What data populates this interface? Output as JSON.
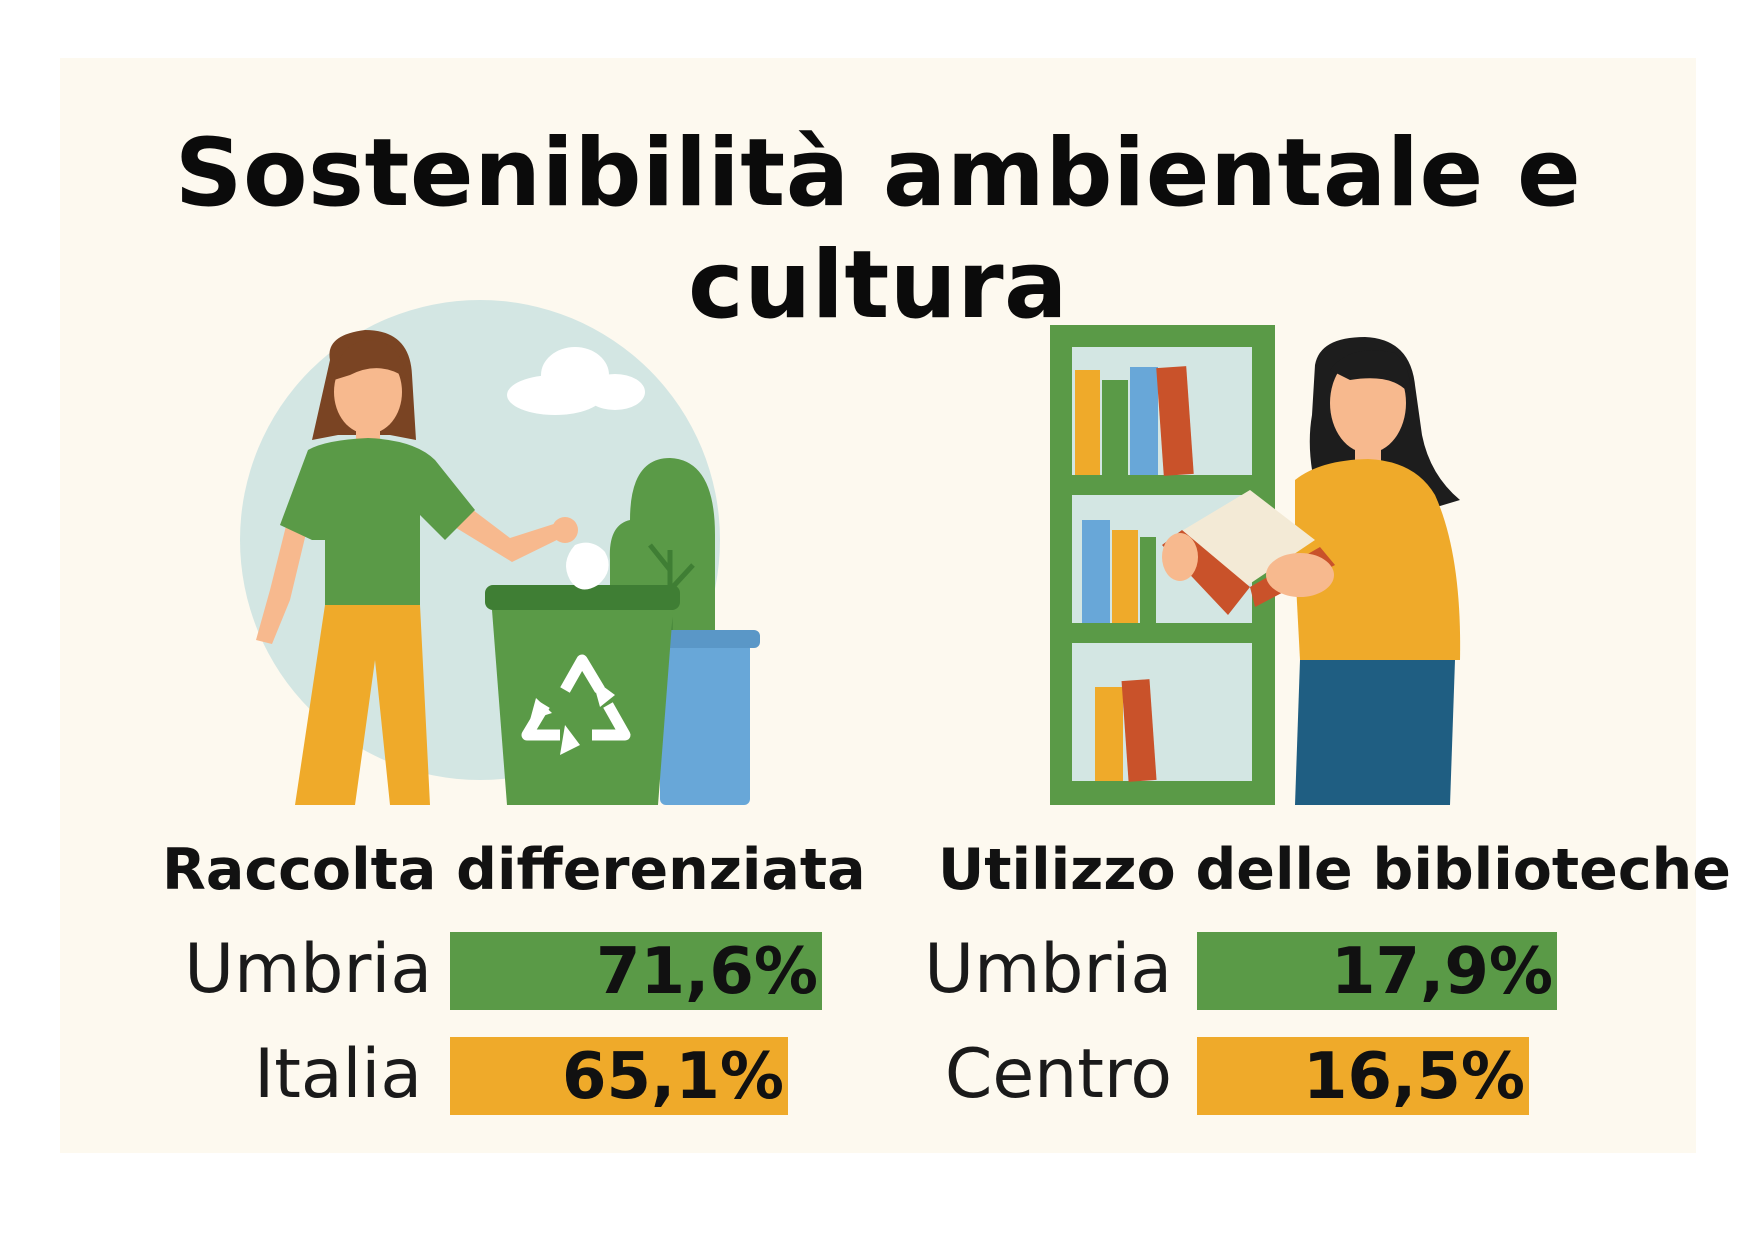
{
  "title": "Sostenibilità ambientale e cultura",
  "colors": {
    "green": "#5a9a47",
    "orange": "#efaa2a",
    "background": "#fdf9ef"
  },
  "illustrations": {
    "left": "person-recycling-illustration",
    "right": "person-reading-library-illustration"
  },
  "chart_data": [
    {
      "type": "bar",
      "title": "Raccolta differenziata",
      "categories": [
        "Umbria",
        "Italia"
      ],
      "values": [
        71.6,
        65.1
      ],
      "labels": [
        "71,6%",
        "65,1%"
      ],
      "colors": [
        "#5a9a47",
        "#efaa2a"
      ]
    },
    {
      "type": "bar",
      "title": "Utilizzo delle biblioteche",
      "categories": [
        "Umbria",
        "Centro"
      ],
      "values": [
        17.9,
        16.5
      ],
      "labels": [
        "17,9%",
        "16,5%"
      ],
      "colors": [
        "#5a9a47",
        "#efaa2a"
      ]
    }
  ]
}
